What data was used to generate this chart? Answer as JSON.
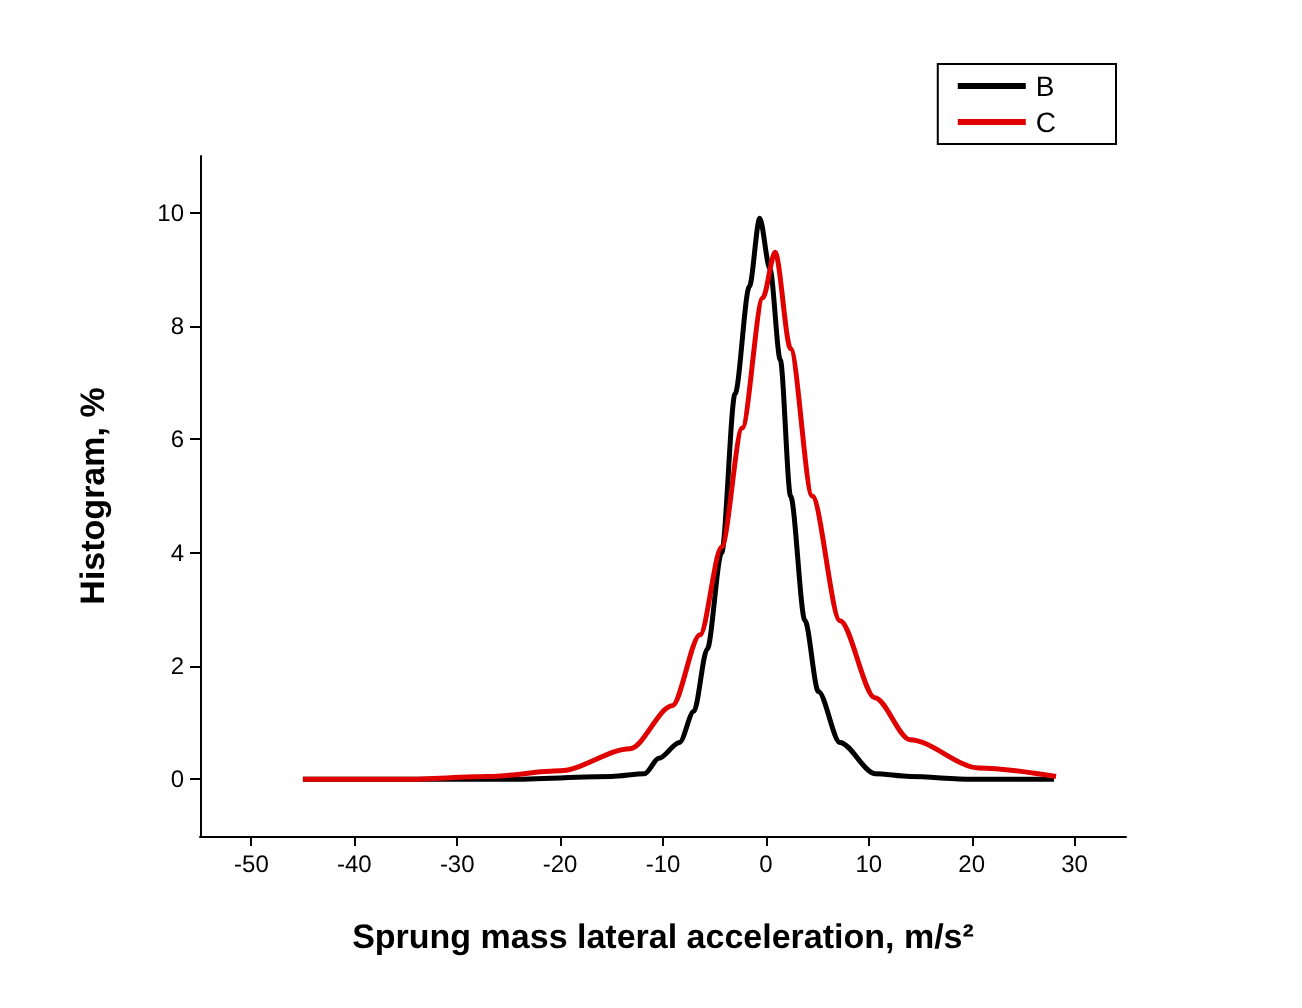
{
  "chart_data": {
    "type": "line",
    "xlabel": "Sprung mass lateral acceleration, m/s²",
    "ylabel": "Histogram, %",
    "xlim": [
      -55,
      35
    ],
    "xticks": [
      -50,
      -40,
      -30,
      -20,
      -10,
      0,
      10,
      20,
      30
    ],
    "ylim": [
      -1,
      11
    ],
    "yticks": [
      0,
      2,
      4,
      6,
      8,
      10
    ],
    "grid": false,
    "legend": "top right",
    "marker": "none",
    "line_style": "solid",
    "series": [
      {
        "name": "B",
        "color": "#000000",
        "x": [
          -45,
          -35,
          -25,
          -15,
          -11.8,
          -10.4,
          -8.4,
          -7,
          -5.7,
          -4.3,
          -3,
          -1.6,
          -0.6,
          0.4,
          1.4,
          2.4,
          3.8,
          5.1,
          7.2,
          10.6,
          14,
          20,
          28
        ],
        "values": [
          0,
          0,
          0,
          0.05,
          0.1,
          0.37,
          0.65,
          1.2,
          2.3,
          4.0,
          6.8,
          8.7,
          9.9,
          9.0,
          7.4,
          5.0,
          2.8,
          1.55,
          0.65,
          0.1,
          0.05,
          0,
          0
        ]
      },
      {
        "name": "C",
        "color": "#e00000",
        "x": [
          -45,
          -35,
          -27,
          -20,
          -13.2,
          -9.1,
          -6.4,
          -4.3,
          -2.3,
          -0.3,
          0.9,
          2.4,
          4.5,
          7.2,
          10.6,
          14,
          20.7,
          28.2
        ],
        "values": [
          0,
          0,
          0.05,
          0.15,
          0.54,
          1.3,
          2.55,
          4.1,
          6.2,
          8.5,
          9.3,
          7.6,
          5.0,
          2.8,
          1.44,
          0.7,
          0.2,
          0.05
        ]
      }
    ]
  }
}
